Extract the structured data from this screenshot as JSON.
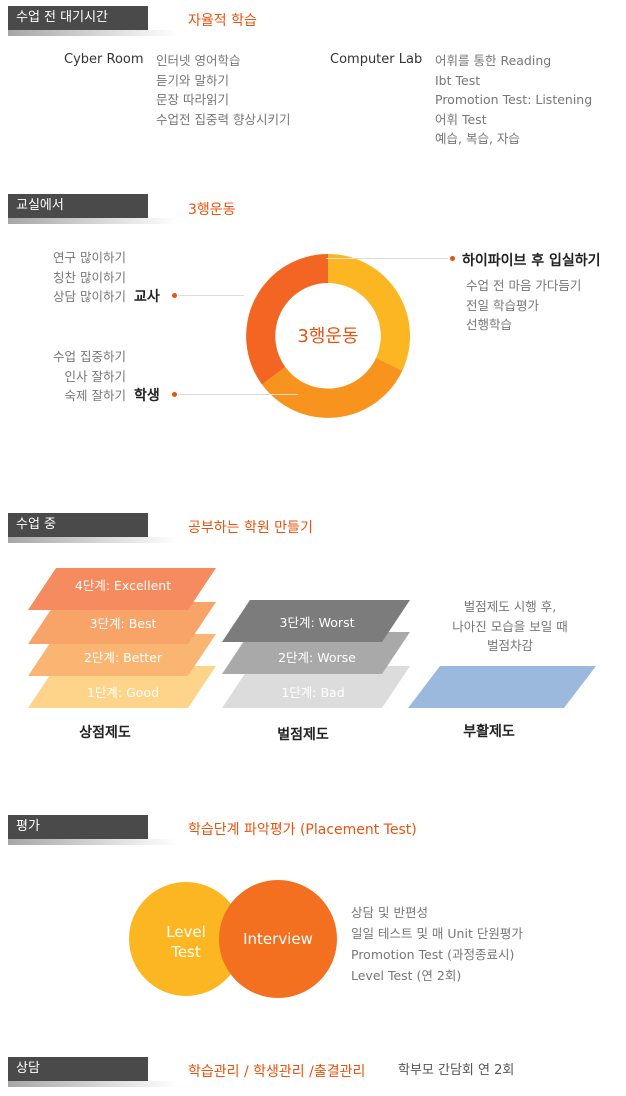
{
  "s1": {
    "tab": "수업 전 대기시간",
    "title": "자율적 학습",
    "cyber_label": "Cyber Room",
    "cyber_items": [
      "인터넷 영어학습",
      "듣기와 말하기",
      "문장 따라읽기",
      "수업전 집중력 향상시키기"
    ],
    "lab_label": "Computer Lab",
    "lab_items": [
      "어휘를 통한 Reading",
      "Ibt Test",
      "Promotion Test: Listening",
      "어휘 Test",
      "예습, 복습, 자습"
    ]
  },
  "s2": {
    "tab": "교실에서",
    "title": "3행운동",
    "center": "3행운동",
    "teacher_items": [
      "연구 많이하기",
      "칭찬 많이하기",
      "상담 많이하기"
    ],
    "teacher_label": "교사",
    "student_items": [
      "수업 집중하기",
      "인사 잘하기",
      "숙제 잘하기"
    ],
    "student_label": "학생",
    "right_label": "하이파이브 후 입실하기",
    "right_items": [
      "수업 전 마음 가다듬기",
      "전일 학습평가",
      "선행학습"
    ],
    "colors": {
      "top": "#fbb622",
      "bottom": "#f8931d",
      "left": "#f26522"
    }
  },
  "s3": {
    "tab": "수업 중",
    "title": "공부하는 학원 만들기",
    "reward_layers": [
      "4단계: Excellent",
      "3단계: Best",
      "2단계: Better",
      "1단계: Good"
    ],
    "reward_label": "상점제도",
    "penalty_layers": [
      "3단계: Worst",
      "2단계: Worse",
      "1단계: Bad"
    ],
    "penalty_label": "벌점제도",
    "revival_text": [
      "벌점제도 시행 후,",
      "나아진 모습을 보일 때",
      "벌점차감"
    ],
    "revival_label": "부활제도"
  },
  "s4": {
    "tab": "평가",
    "title": "학습단계 파악평가 (Placement Test)",
    "circle_left": [
      "Level",
      "Test"
    ],
    "circle_right": "Interview",
    "items": [
      "상담 및 반편성",
      "일일 테스트 및 매 Unit 단원평가",
      "Promotion Test (과정종료시)",
      "Level Test (연 2회)"
    ]
  },
  "s5": {
    "tab": "상담",
    "title": "학습관리 / 학생관리 /출결관리",
    "note": "학부모 간담회 연 2회"
  }
}
